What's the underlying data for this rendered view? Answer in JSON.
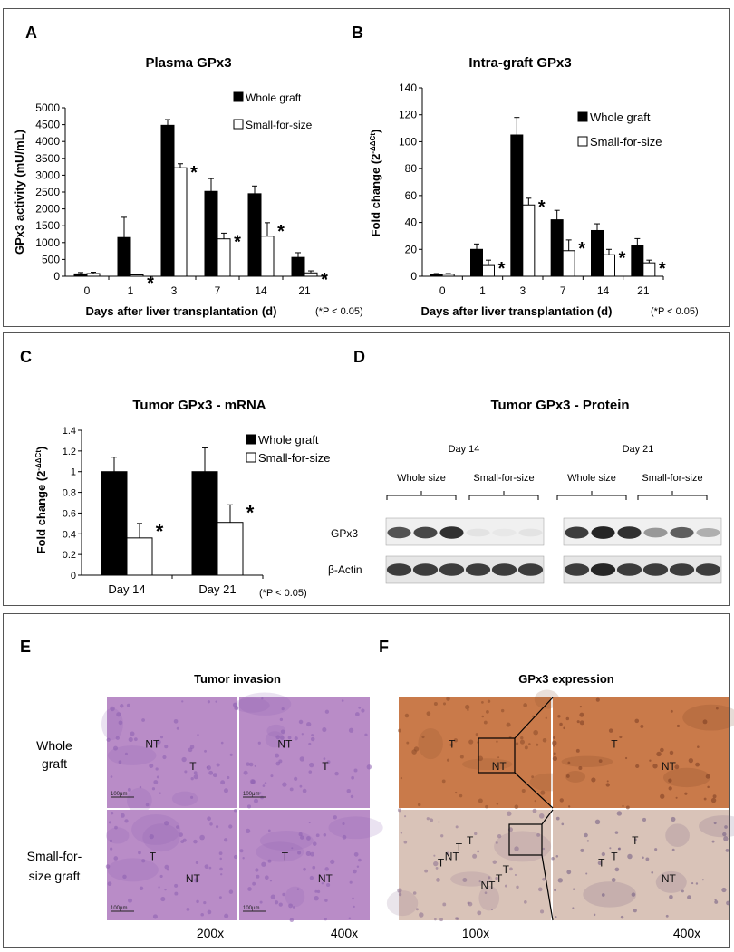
{
  "panels": {
    "A": {
      "letter": "A"
    },
    "B": {
      "letter": "B"
    },
    "C": {
      "letter": "C"
    },
    "D": {
      "letter": "D"
    },
    "E": {
      "letter": "E"
    },
    "F": {
      "letter": "F"
    }
  },
  "significance_note": "(*P < 0.05)",
  "chart_data": [
    {
      "id": "A",
      "type": "bar",
      "title": "Plasma GPx3",
      "xlabel": "Days after liver transplantation (d)",
      "ylabel": "GPx3 activity (mU/mL)",
      "categories": [
        "0",
        "1",
        "3",
        "7",
        "14",
        "21"
      ],
      "ylim": [
        0,
        5000
      ],
      "yticks": [
        0,
        500,
        1000,
        1500,
        2000,
        2500,
        3000,
        3500,
        4000,
        4500,
        5000
      ],
      "legend_position": "top-right",
      "series": [
        {
          "name": "Whole graft",
          "color": "#000000",
          "values": [
            70,
            1150,
            4480,
            2520,
            2450,
            560
          ],
          "errors": [
            40,
            600,
            170,
            380,
            230,
            140
          ]
        },
        {
          "name": "Small-for-size",
          "color": "#ffffff",
          "values": [
            80,
            40,
            3220,
            1110,
            1190,
            100
          ],
          "errors": [
            40,
            20,
            120,
            170,
            400,
            60
          ]
        }
      ],
      "significant": [
        "1",
        "3",
        "7",
        "14",
        "21"
      ]
    },
    {
      "id": "B",
      "type": "bar",
      "title": "Intra-graft GPx3",
      "xlabel": "Days after liver transplantation (d)",
      "ylabel": "Fold change (2",
      "ylabel_sup": "-ΔΔCt",
      "ylabel_end": ")",
      "categories": [
        "0",
        "1",
        "3",
        "7",
        "14",
        "21"
      ],
      "ylim": [
        0,
        140
      ],
      "yticks": [
        0,
        20,
        40,
        60,
        80,
        100,
        120,
        140
      ],
      "legend_position": "top-right",
      "series": [
        {
          "name": "Whole graft",
          "color": "#000000",
          "values": [
            1.5,
            20,
            105,
            42,
            34,
            23
          ],
          "errors": [
            0.5,
            4,
            13,
            7,
            5,
            5
          ]
        },
        {
          "name": "Small-for-size",
          "color": "#ffffff",
          "values": [
            1.5,
            8,
            53,
            19,
            16,
            10
          ],
          "errors": [
            0.5,
            4,
            5,
            8,
            4,
            2
          ]
        }
      ],
      "significant": [
        "1",
        "3",
        "7",
        "14",
        "21"
      ]
    },
    {
      "id": "C",
      "type": "bar",
      "title": "Tumor GPx3 - mRNA",
      "xlabel": "",
      "ylabel": "Fold change (2",
      "ylabel_sup": "-ΔΔCt",
      "ylabel_end": ")",
      "categories": [
        "Day 14",
        "Day 21"
      ],
      "ylim": [
        0,
        1.4
      ],
      "yticks": [
        0,
        0.2,
        0.4,
        0.6,
        0.8,
        1,
        1.2,
        1.4
      ],
      "legend_position": "top-right",
      "series": [
        {
          "name": "Whole graft",
          "color": "#000000",
          "values": [
            1.0,
            1.0
          ],
          "errors": [
            0.14,
            0.23
          ]
        },
        {
          "name": "Small-for-size",
          "color": "#ffffff",
          "values": [
            0.36,
            0.51
          ],
          "errors": [
            0.14,
            0.17
          ]
        }
      ],
      "significant": [
        "Day 14",
        "Day 21"
      ]
    }
  ],
  "blot": {
    "title": "Tumor GPx3 - Protein",
    "groups": [
      {
        "day": "Day 14",
        "subgroups": [
          "Whole size",
          "Small-for-size"
        ],
        "gpx3_intensity": [
          0.75,
          0.8,
          0.9,
          0.12,
          0.1,
          0.12
        ],
        "actin_intensity": [
          0.85,
          0.85,
          0.85,
          0.85,
          0.85,
          0.85
        ]
      },
      {
        "day": "Day 21",
        "subgroups": [
          "Whole size",
          "Small-for-size"
        ],
        "gpx3_intensity": [
          0.85,
          0.95,
          0.9,
          0.45,
          0.7,
          0.35
        ],
        "actin_intensity": [
          0.85,
          0.95,
          0.85,
          0.85,
          0.85,
          0.85
        ]
      }
    ],
    "rows": [
      "GPx3",
      "β-Actin"
    ]
  },
  "histology": {
    "E": {
      "title": "Tumor invasion",
      "row_labels": [
        "Whole graft",
        "Small-for-size graft"
      ],
      "row_label_lines": [
        [
          "Whole",
          "graft"
        ],
        [
          "Small-for-",
          "size graft"
        ]
      ],
      "magnifications": [
        "200x",
        "400x"
      ],
      "tiles": [
        {
          "labels": [
            "NT",
            "T"
          ]
        },
        {
          "labels": [
            "NT",
            "T"
          ]
        },
        {
          "labels": [
            "T",
            "NT"
          ]
        },
        {
          "labels": [
            "T",
            "NT"
          ]
        }
      ]
    },
    "F": {
      "title": "GPx3 expression",
      "magnifications": [
        "100x",
        "400x"
      ],
      "tiles": [
        {
          "labels": [
            "T",
            "NT"
          ]
        },
        {
          "labels": [
            "T",
            "NT"
          ]
        },
        {
          "labels": [
            "NT",
            "T",
            "T",
            "T",
            "NT",
            "T",
            "T"
          ]
        },
        {
          "labels": [
            "T",
            "NT",
            "T",
            "T"
          ]
        }
      ]
    },
    "scale_bar": "100μm"
  },
  "colors": {
    "he_stain": "#b98cc7",
    "he_dark": "#8d5fb0",
    "ihc_brown": "#c97a4a",
    "ihc_light": "#d9c3b8"
  }
}
